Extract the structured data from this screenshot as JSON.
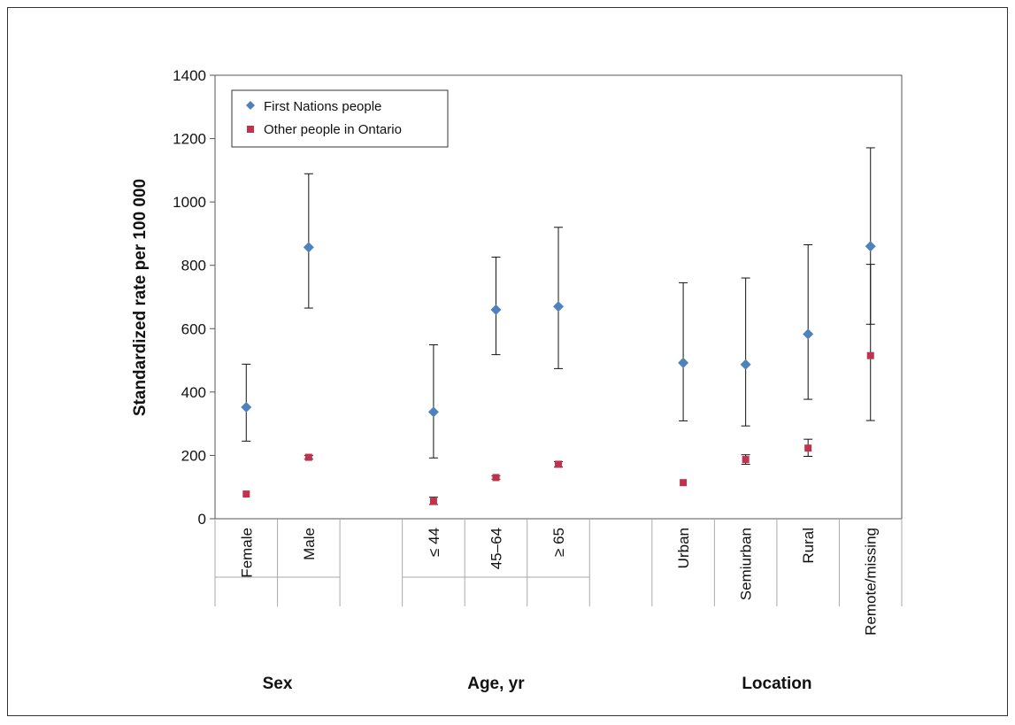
{
  "chart_data": {
    "type": "scatter",
    "ylabel": "Standardized rate per 100 000",
    "ylim": [
      0,
      1400
    ],
    "yticks": [
      0,
      200,
      400,
      600,
      800,
      1000,
      1200,
      1400
    ],
    "grid": false,
    "legend_position": "top-left",
    "categories": [
      "Female",
      "Male",
      "",
      "≤ 44",
      "45–64",
      "≥ 65",
      "",
      "Urban",
      "Semiurban",
      "Rural",
      "Remote/missing"
    ],
    "groups": [
      {
        "label": "Sex",
        "categories": [
          "Female",
          "Male"
        ]
      },
      {
        "label": "Age, yr",
        "categories": [
          "≤ 44",
          "45–64",
          "≥ 65"
        ]
      },
      {
        "label": "Location",
        "categories": [
          "Urban",
          "Semiurban",
          "Rural",
          "Remote/missing"
        ]
      }
    ],
    "series": [
      {
        "name": "First Nations people",
        "marker": "diamond",
        "color": "#4f81bd",
        "values": [
          352,
          857,
          null,
          337,
          660,
          670,
          null,
          492,
          487,
          583,
          860
        ],
        "ci_low": [
          245,
          665,
          null,
          192,
          518,
          474,
          null,
          309,
          293,
          377,
          614
        ],
        "ci_high": [
          488,
          1089,
          null,
          549,
          826,
          920,
          null,
          745,
          760,
          865,
          1171
        ]
      },
      {
        "name": "Other people in Ontario",
        "marker": "square",
        "color": "#c0334d",
        "values": [
          78,
          194,
          null,
          55,
          130,
          172,
          null,
          114,
          187,
          223,
          515
        ],
        "ci_low": [
          null,
          188,
          null,
          45,
          125,
          163,
          null,
          null,
          172,
          197,
          310
        ],
        "ci_high": [
          null,
          200,
          null,
          68,
          135,
          180,
          null,
          null,
          202,
          251,
          803
        ]
      }
    ]
  }
}
